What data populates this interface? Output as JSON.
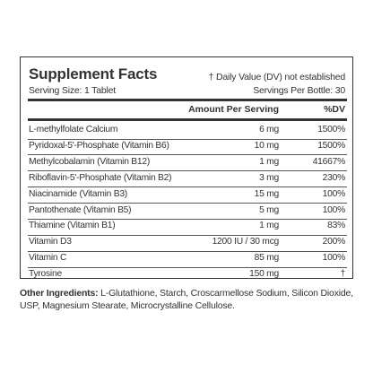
{
  "header": {
    "title": "Supplement Facts",
    "note": "† Daily Value (DV) not established"
  },
  "serving": {
    "size": "Serving Size: 1 Tablet",
    "per_bottle": "Servings Per Bottle: 30"
  },
  "table": {
    "columns": [
      "Amount Per Serving",
      "%DV"
    ],
    "rows": [
      [
        "L-methylfolate Calcium",
        "6 mg",
        "1500%"
      ],
      [
        "Pyridoxal-5'-Phosphate (Vitamin B6)",
        "10 mg",
        "1500%"
      ],
      [
        "Methylcobalamin (Vitamin B12)",
        "1 mg",
        "41667%"
      ],
      [
        "Riboflavin-5'-Phosphate (Vitamin B2)",
        "3 mg",
        "230%"
      ],
      [
        "Niacinamide (Vitamin B3)",
        "15 mg",
        "100%"
      ],
      [
        "Pantothenate (Vitamin B5)",
        "5 mg",
        "100%"
      ],
      [
        "Thiamine (Vitamin B1)",
        "1 mg",
        "83%"
      ],
      [
        "Vitamin D3",
        "1200 IU / 30 mcg",
        "200%"
      ],
      [
        "Vitamin C",
        "85 mg",
        "100%"
      ],
      [
        "Tyrosine",
        "150 mg",
        "†"
      ]
    ]
  },
  "other": {
    "label": "Other Ingredients:",
    "text": "L-Glutathione, Starch, Croscarmellose Sodium, Silicon Dioxide, USP, Magnesium Stearate, Microcrystalline Cellulose."
  }
}
